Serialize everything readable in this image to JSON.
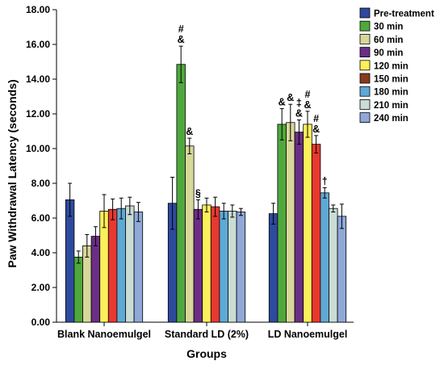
{
  "chart_data": {
    "type": "bar",
    "xlabel": "Groups",
    "ylabel": "Paw Withdrawal Latency (seconds)",
    "ylim": [
      0,
      18
    ],
    "yticks": [
      "0.00",
      "2.00",
      "4.00",
      "6.00",
      "8.00",
      "10.00",
      "12.00",
      "14.00",
      "16.00",
      "18.00"
    ],
    "legend_position": "right",
    "grid": false,
    "categories": [
      "Blank Nanoemulgel",
      "Standard LD (2%)",
      "LD Nanoemulgel"
    ],
    "series": [
      {
        "name": "Pre-treatment",
        "color": "#2E4A9E",
        "values": [
          7.05,
          6.85,
          6.25
        ],
        "errors": [
          0.95,
          1.5,
          0.6
        ]
      },
      {
        "name": "30 min",
        "color": "#4FA83D",
        "values": [
          3.75,
          14.85,
          11.4
        ],
        "errors": [
          0.35,
          1.05,
          0.9
        ]
      },
      {
        "name": "60 min",
        "color": "#D8D79A",
        "values": [
          4.4,
          10.15,
          11.5
        ],
        "errors": [
          0.65,
          0.45,
          1.05
        ]
      },
      {
        "name": "90 min",
        "color": "#6B2E86",
        "values": [
          4.95,
          6.5,
          10.95
        ],
        "errors": [
          0.55,
          0.55,
          0.7
        ]
      },
      {
        "name": "120 min",
        "color": "#FAF05A",
        "values": [
          6.4,
          6.75,
          11.4
        ],
        "errors": [
          0.95,
          0.4,
          0.75
        ]
      },
      {
        "name": "150 min",
        "color": "#8B3A1E",
        "values": [
          6.5,
          6.65,
          10.25
        ],
        "errors": [
          0.6,
          0.55,
          0.5
        ]
      },
      {
        "name": "180 min",
        "color": "#5FA9D6",
        "values": [
          6.55,
          6.4,
          7.45
        ],
        "errors": [
          0.6,
          0.45,
          0.3
        ]
      },
      {
        "name": "210 min",
        "color": "#C9DCD5",
        "values": [
          6.7,
          6.4,
          6.55
        ],
        "errors": [
          0.5,
          0.35,
          0.2
        ]
      },
      {
        "name": "240 min",
        "color": "#8FA8D8",
        "values": [
          6.35,
          6.35,
          6.1
        ],
        "errors": [
          0.55,
          0.2,
          0.7
        ]
      }
    ],
    "bar_overrides": [
      {
        "category": 1,
        "series": 5,
        "color": "#E8382F"
      },
      {
        "category": 2,
        "series": 5,
        "color": "#E8382F"
      },
      {
        "category": 0,
        "series": 5,
        "color": "#E8382F"
      }
    ],
    "annotations": [
      {
        "category": 1,
        "series": 1,
        "lines": [
          "#",
          "&"
        ]
      },
      {
        "category": 1,
        "series": 2,
        "lines": [
          "&"
        ]
      },
      {
        "category": 1,
        "series": 3,
        "lines": [
          "§"
        ]
      },
      {
        "category": 2,
        "series": 1,
        "lines": [
          "&"
        ]
      },
      {
        "category": 2,
        "series": 2,
        "lines": [
          "&"
        ]
      },
      {
        "category": 2,
        "series": 3,
        "lines": [
          "‡",
          "&"
        ]
      },
      {
        "category": 2,
        "series": 4,
        "lines": [
          "#",
          "&"
        ]
      },
      {
        "category": 2,
        "series": 5,
        "lines": [
          "#",
          "&"
        ]
      },
      {
        "category": 2,
        "series": 6,
        "lines": [
          "†"
        ]
      }
    ]
  }
}
